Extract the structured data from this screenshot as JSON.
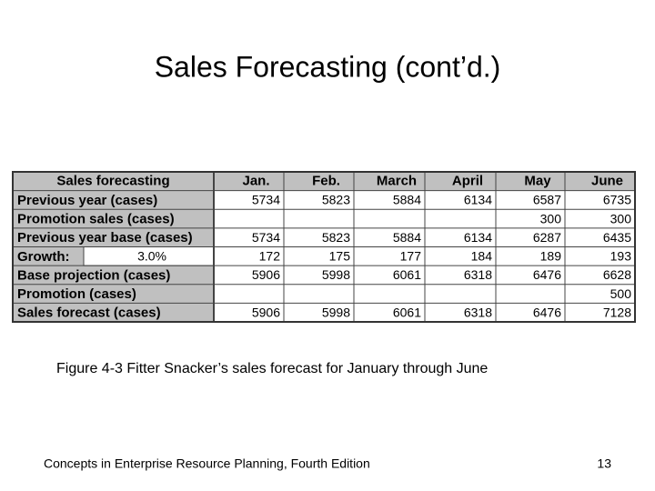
{
  "title": "Sales Forecasting (cont’d.)",
  "table": {
    "header": [
      "Sales forecasting",
      "Jan.",
      "Feb.",
      "March",
      "April",
      "May",
      "June"
    ],
    "rows": [
      {
        "label": "Previous year (cases)",
        "cells": [
          5734,
          5823,
          5884,
          6134,
          6587,
          6735
        ]
      },
      {
        "label": "Promotion sales (cases)",
        "cells": [
          null,
          null,
          null,
          null,
          300,
          300
        ]
      },
      {
        "label": "Previous year base (cases)",
        "cells": [
          5734,
          5823,
          5884,
          6134,
          6287,
          6435
        ]
      },
      {
        "label": "Growth:",
        "rate": "3.0%",
        "cells": [
          172,
          175,
          177,
          184,
          189,
          193
        ]
      },
      {
        "label": "Base projection (cases)",
        "cells": [
          5906,
          5998,
          6061,
          6318,
          6476,
          6628
        ]
      },
      {
        "label": "Promotion (cases)",
        "cells": [
          null,
          null,
          null,
          null,
          null,
          500
        ]
      },
      {
        "label": "Sales forecast (cases)",
        "cells": [
          5906,
          5998,
          6061,
          6318,
          6476,
          7128
        ]
      }
    ]
  },
  "caption": "Figure 4-3  Fitter Snacker’s sales forecast for January through June",
  "footer": "Concepts in Enterprise Resource Planning, Fourth Edition",
  "page_number": 13
}
